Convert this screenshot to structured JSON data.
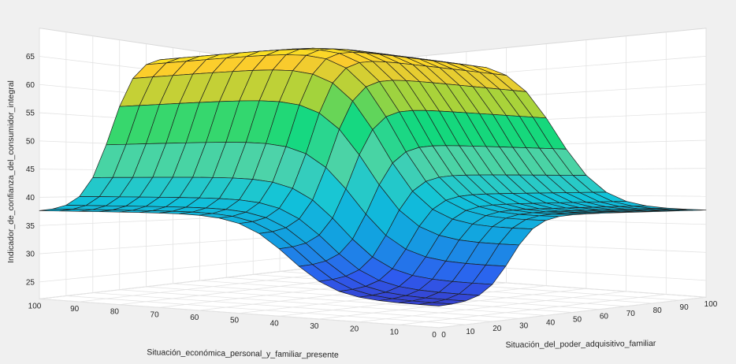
{
  "chart_data": {
    "type": "surface",
    "title": "",
    "xlabel": "Situación_económica_personal_y_familiar_presente",
    "ylabel": "Situación_del_poder_adquisitivo_familiar",
    "zlabel": "Indicador_de_confianza_del_consumidor_integral",
    "x_ticks": [
      100,
      90,
      80,
      70,
      60,
      50,
      40,
      30,
      20,
      10,
      0
    ],
    "y_ticks": [
      0,
      10,
      20,
      30,
      40,
      50,
      60,
      70,
      80,
      90,
      100
    ],
    "z_ticks": [
      25,
      30,
      35,
      40,
      45,
      50,
      55,
      60,
      65
    ],
    "xlim": [
      0,
      100
    ],
    "ylim": [
      0,
      100
    ],
    "zlim": [
      22,
      70
    ],
    "grid": true,
    "colormap": "parula",
    "clim": [
      22,
      70
    ],
    "colormap_stops": [
      "#3e26a8",
      "#2e5cf0",
      "#12a2e0",
      "#11c4d9",
      "#4ed3a8",
      "#12d87e",
      "#a9d33a",
      "#fbcb2d",
      "#f9fb15"
    ],
    "grid_resolution": 21,
    "surface_description": "High plateau near 68 where both variables are high; falls to near 25 where both are low; about 37-38 along the edges where only one variable is low."
  }
}
